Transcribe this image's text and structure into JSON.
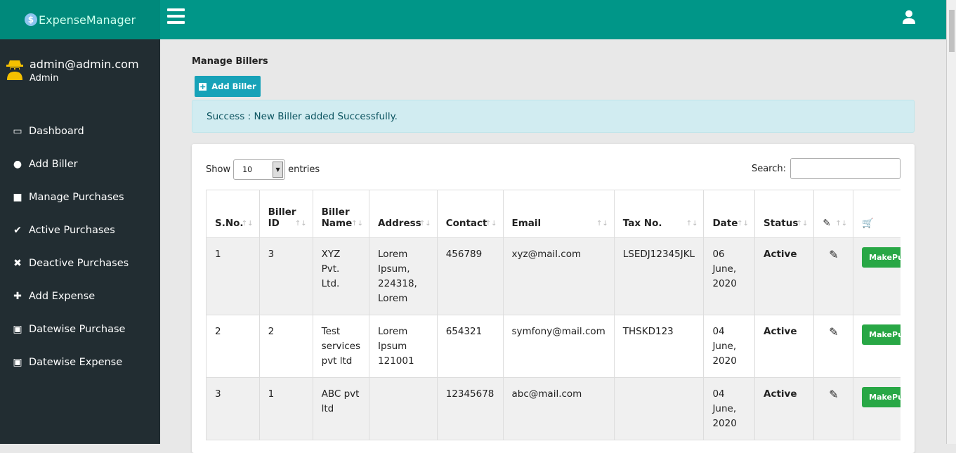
{
  "app": {
    "logo": "ExpenseManager",
    "logo_icon": "dollar-coin-icon"
  },
  "user": {
    "email": "admin@admin.com",
    "role": "Admin"
  },
  "sidebar": {
    "items": [
      {
        "label": "Dashboard",
        "icon": "laptop-icon"
      },
      {
        "label": "Add Biller",
        "icon": "user-circle-icon"
      },
      {
        "label": "Manage Purchases",
        "icon": "shopping-bag-icon"
      },
      {
        "label": "Active Purchases",
        "icon": "check-icon"
      },
      {
        "label": "Deactive Purchases",
        "icon": "times-icon"
      },
      {
        "label": "Add Expense",
        "icon": "plus-icon"
      },
      {
        "label": "Datewise Purchase",
        "icon": "calendar-check-icon"
      },
      {
        "label": "Datewise Expense",
        "icon": "calendar-minus-icon"
      }
    ]
  },
  "page": {
    "title": "Manage Billers",
    "add_button": "Add Biller",
    "alert": "Success : New Biller added Successfully."
  },
  "table": {
    "show": "Show",
    "entries_value": "10",
    "entries": "entries",
    "search_label": "Search:",
    "search_value": "",
    "headers": [
      "S.No.",
      "Biller ID",
      "Biller Name",
      "Address",
      "Contact",
      "Email",
      "Tax No.",
      "Date",
      "Status"
    ],
    "rows": [
      [
        "1",
        "3",
        "XYZ Pvt. Ltd.",
        "Lorem Ipsum, 224318, Lorem",
        "456789",
        "xyz@mail.com",
        "LSEDJ12345JKL",
        "06 June, 2020",
        "Active"
      ],
      [
        "2",
        "2",
        "Test services pvt ltd",
        "Lorem Ipsum 121001",
        "654321",
        "symfony@mail.com",
        "THSKD123",
        "04 June, 2020",
        "Active"
      ],
      [
        "3",
        "1",
        "ABC pvt ltd",
        "",
        "12345678",
        "abc@mail.com",
        "",
        "04 June, 2020",
        "Active"
      ]
    ],
    "action_label": "MakePurchase"
  },
  "colors": {
    "header": "#009688",
    "sidebar": "#222d32",
    "info_button": "#17a2b8",
    "success_button": "#28a745"
  }
}
